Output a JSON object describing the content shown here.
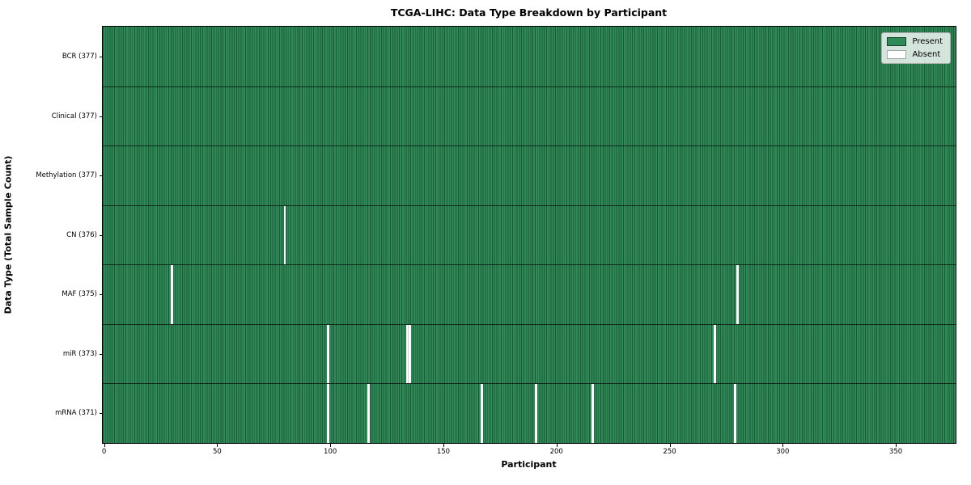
{
  "title": "TCGA-LIHC: Data Type Breakdown by Participant",
  "xlabel": "Participant",
  "ylabel": "Data Type (Total Sample Count)",
  "legend": {
    "present_label": "Present",
    "absent_label": "Absent"
  },
  "colors": {
    "present": "#2e8b57",
    "present_cell_edge": "#1d5738",
    "absent": "#ffffff",
    "row_divider": "rgba(0,0,0,0.65)",
    "legend_background": "rgba(255,255,255,0.8)",
    "legend_border": "#b0b0b0"
  },
  "chart_data": {
    "type": "heatmap",
    "title": "TCGA-LIHC: Data Type Breakdown by Participant",
    "xlabel": "Participant",
    "ylabel": "Data Type (Total Sample Count)",
    "n_participants": 377,
    "xlim": [
      0,
      377
    ],
    "x_ticks": [
      0,
      50,
      100,
      150,
      200,
      250,
      300,
      350
    ],
    "grid": false,
    "legend_entries": [
      "Present",
      "Absent"
    ],
    "legend_position": "upper right",
    "cell_values": "binary presence (1=Present green, 0=Absent white)",
    "rows": [
      {
        "label": "BCR (377)",
        "data_type": "BCR",
        "present_count": 377,
        "absent_count": 0,
        "absent_participants": []
      },
      {
        "label": "Clinical (377)",
        "data_type": "Clinical",
        "present_count": 377,
        "absent_count": 0,
        "absent_participants": []
      },
      {
        "label": "Methylation (377)",
        "data_type": "Methylation",
        "present_count": 377,
        "absent_count": 0,
        "absent_participants": []
      },
      {
        "label": "CN (376)",
        "data_type": "CN",
        "present_count": 376,
        "absent_count": 1,
        "absent_participants": [
          80
        ]
      },
      {
        "label": "MAF (375)",
        "data_type": "MAF",
        "present_count": 375,
        "absent_count": 2,
        "absent_participants": [
          30,
          280
        ]
      },
      {
        "label": "miR (373)",
        "data_type": "miR",
        "present_count": 373,
        "absent_count": 4,
        "absent_participants": [
          99,
          134,
          135,
          270
        ]
      },
      {
        "label": "mRNA (371)",
        "data_type": "mRNA",
        "present_count": 371,
        "absent_count": 6,
        "absent_participants": [
          99,
          117,
          167,
          191,
          216,
          279
        ]
      }
    ]
  }
}
